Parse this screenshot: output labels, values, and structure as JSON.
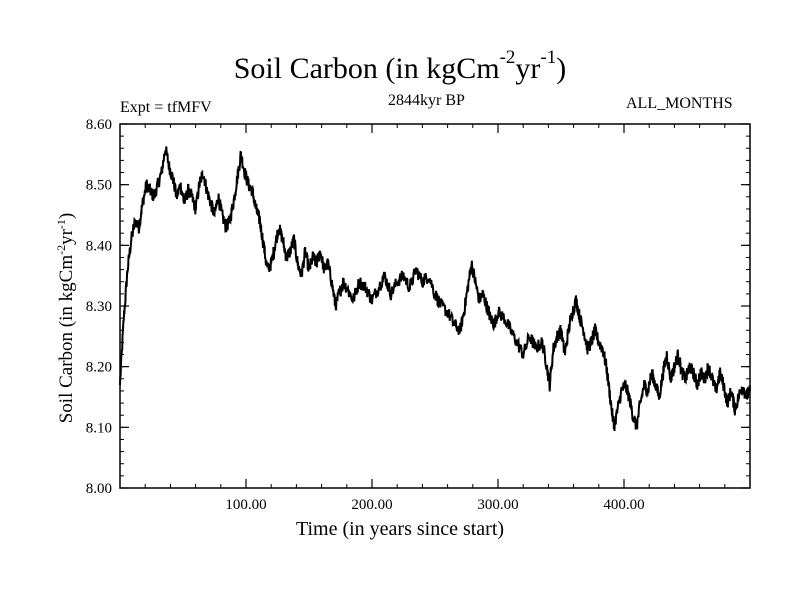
{
  "chart_data": {
    "type": "line",
    "title_main": "Soil Carbon (in kgCm",
    "title_exp1": "-2",
    "title_mid": "yr",
    "title_exp2": "-1",
    "title_end": ")",
    "subtitle_left": "Expt = tfMFV",
    "subtitle_center": "2844kyr BP",
    "subtitle_right": "ALL_MONTHS",
    "xlabel": "Time (in years since start)",
    "ylabel_main": "Soil Carbon (in kgCm",
    "ylabel_exp1": "-2",
    "ylabel_mid": "yr",
    "ylabel_exp2": "-1",
    "ylabel_end": ")",
    "xlim": [
      0,
      500
    ],
    "ylim": [
      8.0,
      8.6
    ],
    "xticks": [
      100,
      200,
      300,
      400
    ],
    "xtick_labels": [
      "100.00",
      "200.00",
      "300.00",
      "400.00"
    ],
    "yticks": [
      8.0,
      8.1,
      8.2,
      8.3,
      8.4,
      8.5,
      8.6
    ],
    "ytick_labels": [
      "8.00",
      "8.10",
      "8.20",
      "8.30",
      "8.40",
      "8.50",
      "8.60"
    ],
    "series": [
      {
        "name": "Soil Carbon",
        "x": [
          0,
          3,
          6,
          9,
          12,
          15,
          18,
          21,
          24,
          27,
          30,
          33,
          36,
          39,
          42,
          45,
          48,
          51,
          54,
          57,
          60,
          63,
          66,
          69,
          72,
          75,
          78,
          81,
          84,
          87,
          90,
          93,
          96,
          99,
          102,
          105,
          108,
          111,
          114,
          117,
          120,
          123,
          126,
          129,
          132,
          135,
          138,
          141,
          144,
          147,
          150,
          153,
          156,
          159,
          162,
          165,
          168,
          171,
          174,
          177,
          180,
          185,
          190,
          195,
          200,
          205,
          210,
          215,
          220,
          225,
          230,
          235,
          240,
          245,
          250,
          255,
          260,
          265,
          270,
          273,
          276,
          279,
          282,
          285,
          288,
          291,
          294,
          297,
          300,
          305,
          310,
          315,
          320,
          325,
          330,
          335,
          338,
          341,
          344,
          347,
          350,
          353,
          356,
          359,
          362,
          365,
          368,
          371,
          374,
          377,
          380,
          383,
          386,
          389,
          392,
          395,
          398,
          401,
          404,
          407,
          410,
          413,
          416,
          419,
          422,
          425,
          428,
          431,
          434,
          437,
          440,
          443,
          446,
          449,
          452,
          455,
          458,
          461,
          464,
          467,
          470,
          473,
          476,
          479,
          482,
          485,
          488,
          491,
          494,
          497,
          500
        ],
        "values": [
          8.17,
          8.28,
          8.36,
          8.41,
          8.44,
          8.43,
          8.47,
          8.5,
          8.49,
          8.48,
          8.5,
          8.52,
          8.56,
          8.53,
          8.51,
          8.48,
          8.5,
          8.47,
          8.49,
          8.48,
          8.46,
          8.5,
          8.52,
          8.49,
          8.47,
          8.45,
          8.48,
          8.45,
          8.43,
          8.44,
          8.47,
          8.51,
          8.55,
          8.52,
          8.5,
          8.49,
          8.46,
          8.44,
          8.4,
          8.36,
          8.37,
          8.4,
          8.43,
          8.41,
          8.38,
          8.39,
          8.41,
          8.37,
          8.35,
          8.39,
          8.36,
          8.38,
          8.37,
          8.39,
          8.36,
          8.37,
          8.34,
          8.3,
          8.32,
          8.34,
          8.33,
          8.31,
          8.34,
          8.33,
          8.31,
          8.33,
          8.35,
          8.32,
          8.34,
          8.35,
          8.33,
          8.36,
          8.34,
          8.35,
          8.32,
          8.3,
          8.29,
          8.27,
          8.26,
          8.29,
          8.33,
          8.37,
          8.34,
          8.31,
          8.32,
          8.3,
          8.28,
          8.27,
          8.29,
          8.28,
          8.26,
          8.24,
          8.22,
          8.25,
          8.23,
          8.24,
          8.21,
          8.17,
          8.23,
          8.25,
          8.26,
          8.22,
          8.26,
          8.29,
          8.31,
          8.28,
          8.26,
          8.23,
          8.24,
          8.26,
          8.24,
          8.23,
          8.2,
          8.15,
          8.1,
          8.13,
          8.16,
          8.17,
          8.15,
          8.12,
          8.1,
          8.14,
          8.17,
          8.16,
          8.19,
          8.17,
          8.15,
          8.19,
          8.22,
          8.18,
          8.2,
          8.22,
          8.19,
          8.18,
          8.2,
          8.19,
          8.17,
          8.19,
          8.18,
          8.2,
          8.18,
          8.16,
          8.19,
          8.17,
          8.14,
          8.16,
          8.13,
          8.15,
          8.17,
          8.15,
          8.16
        ]
      }
    ]
  }
}
